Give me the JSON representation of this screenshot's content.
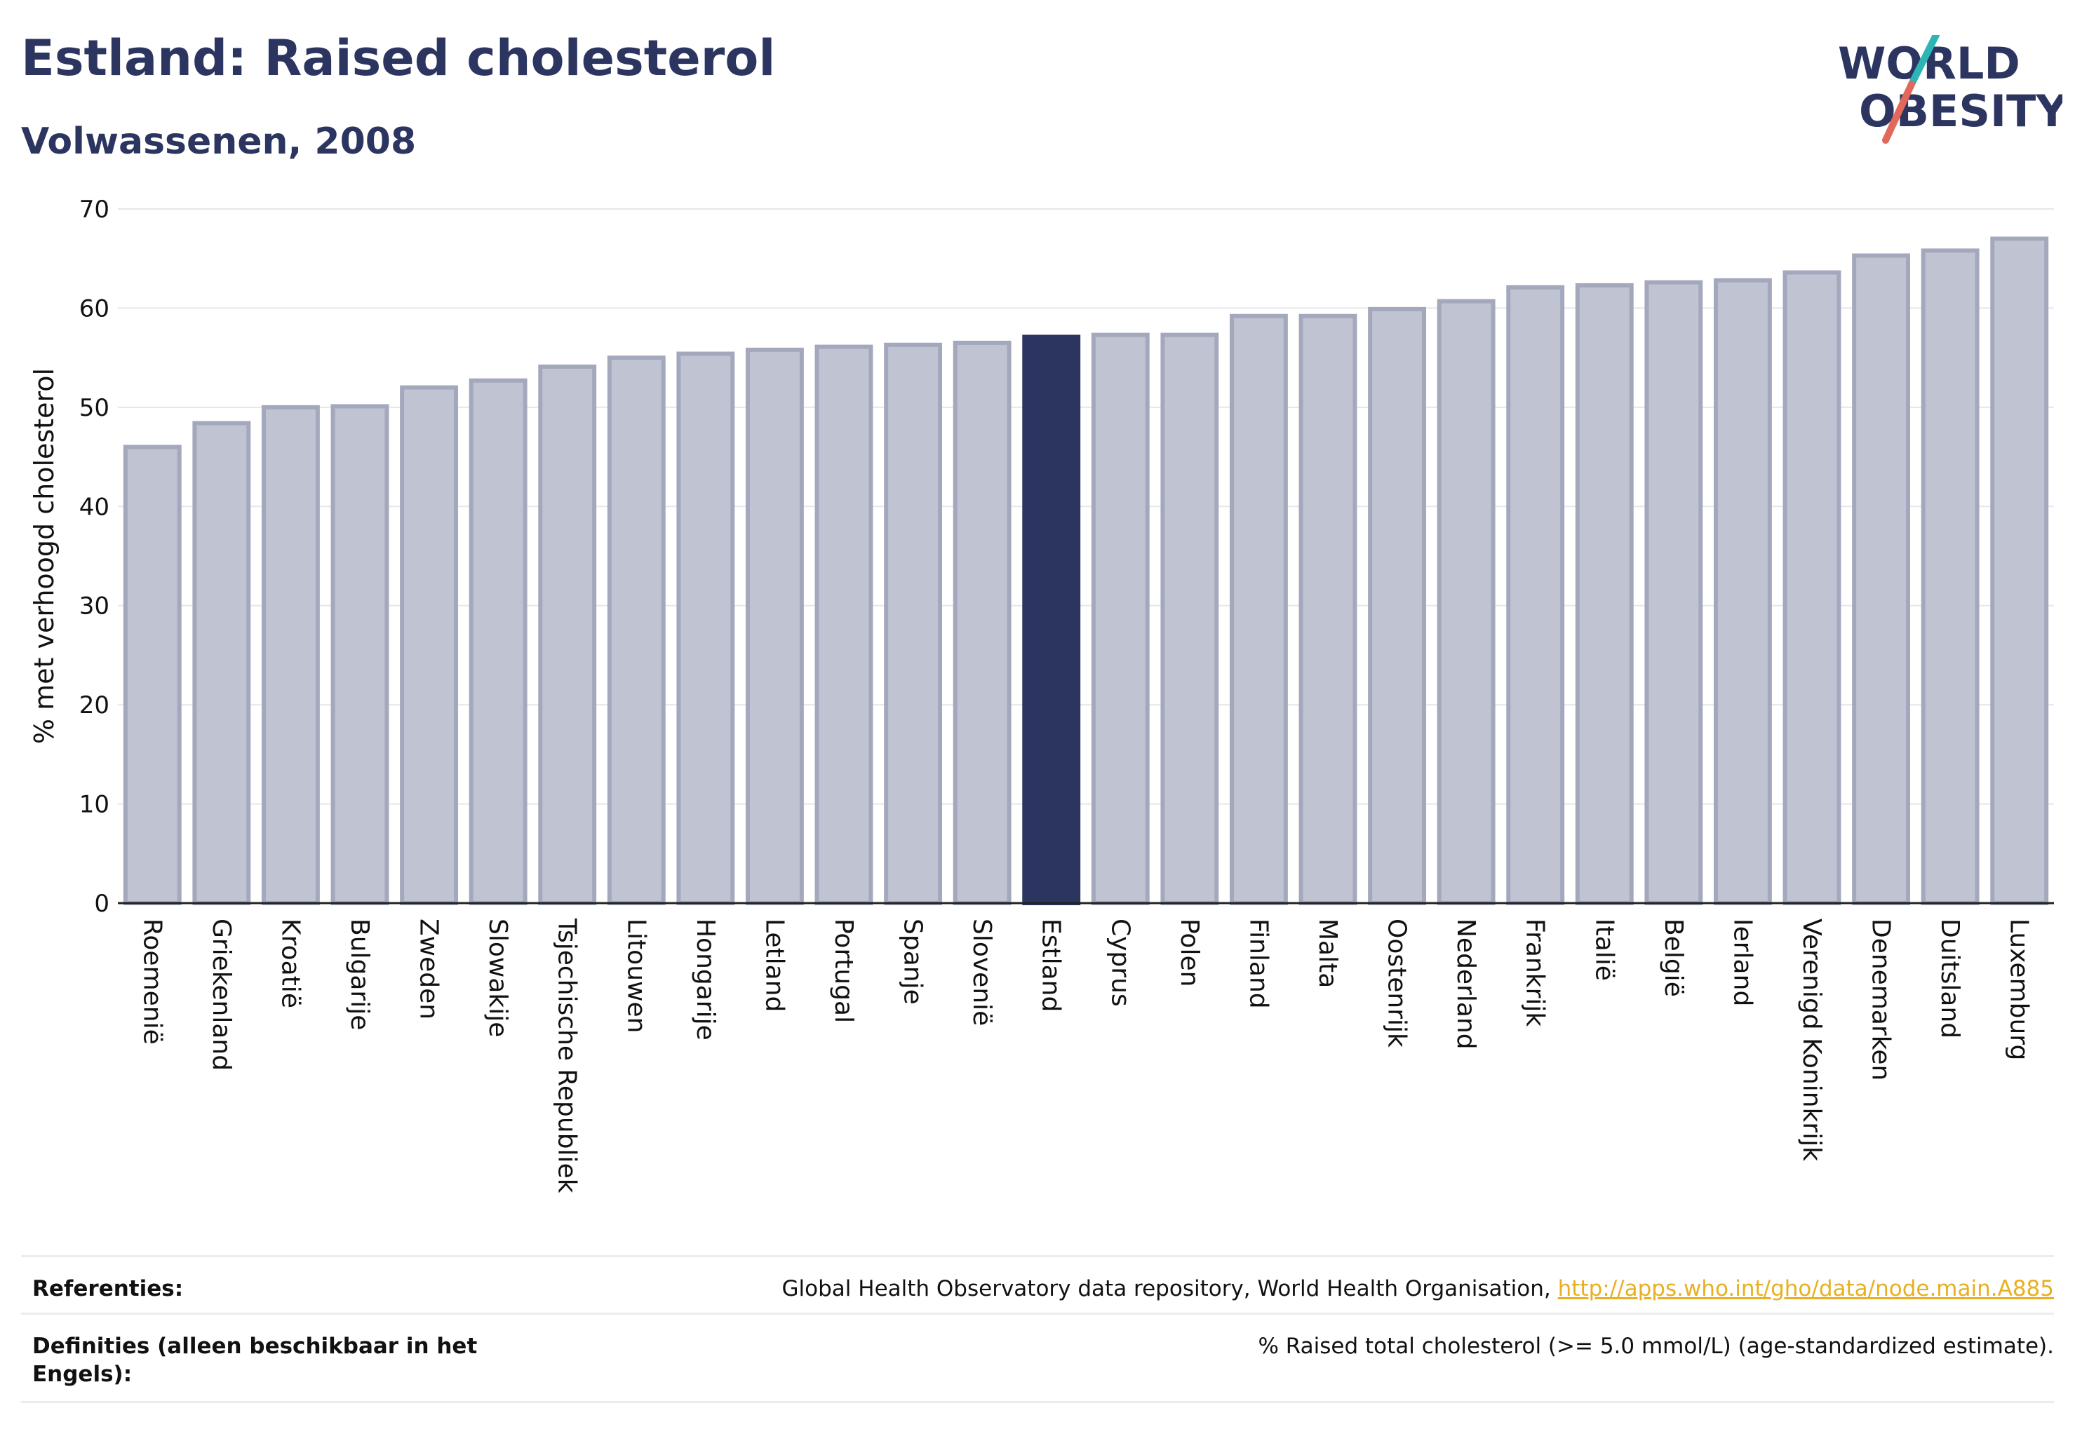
{
  "header": {
    "title": "Estland: Raised cholesterol",
    "subtitle": "Volwassenen, 2008"
  },
  "logo": {
    "line1": "WORLD",
    "line2": "OBESITY",
    "colors": {
      "text": "#2b3560",
      "stroke_top": "#2bb5b5",
      "stroke_bottom": "#e2685c"
    }
  },
  "chart_data": {
    "type": "bar",
    "ylabel": "% met verhoogd cholesterol",
    "xlabel": "",
    "ylim": [
      0,
      70
    ],
    "yticks": [
      0,
      10,
      20,
      30,
      40,
      50,
      60,
      70
    ],
    "grid": true,
    "highlight": "Estland",
    "colors": {
      "bar": "#c0c3d1",
      "bar_edge": "#a3a8bd",
      "highlight": "#2b3560"
    },
    "categories": [
      "Roemenië",
      "Griekenland",
      "Kroatië",
      "Bulgarije",
      "Zweden",
      "Slowakije",
      "Tsjechische Republiek",
      "Litouwen",
      "Hongarije",
      "Letland",
      "Portugal",
      "Spanje",
      "Slovenië",
      "Estland",
      "Cyprus",
      "Polen",
      "Finland",
      "Malta",
      "Oostenrijk",
      "Nederland",
      "Frankrijk",
      "Italië",
      "België",
      "Ierland",
      "Verenigd Koninkrijk",
      "Denemarken",
      "Duitsland",
      "Luxemburg"
    ],
    "values": [
      46.0,
      48.4,
      50.0,
      50.1,
      52.0,
      52.7,
      54.1,
      55.0,
      55.4,
      55.8,
      56.1,
      56.3,
      56.5,
      57.1,
      57.3,
      57.3,
      59.2,
      59.2,
      59.9,
      60.7,
      62.1,
      62.3,
      62.6,
      62.8,
      63.6,
      65.3,
      65.8,
      67.0
    ]
  },
  "footer": {
    "references_label": "Referenties:",
    "references_text": "Global Health Observatory data repository, World Health Organisation, ",
    "references_link": "http://apps.who.int/gho/data/node.main.A885",
    "definitions_label": "Definities (alleen beschikbaar in het Engels):",
    "definitions_text": "% Raised total cholesterol (>= 5.0 mmol/L) (age-standardized estimate)."
  }
}
